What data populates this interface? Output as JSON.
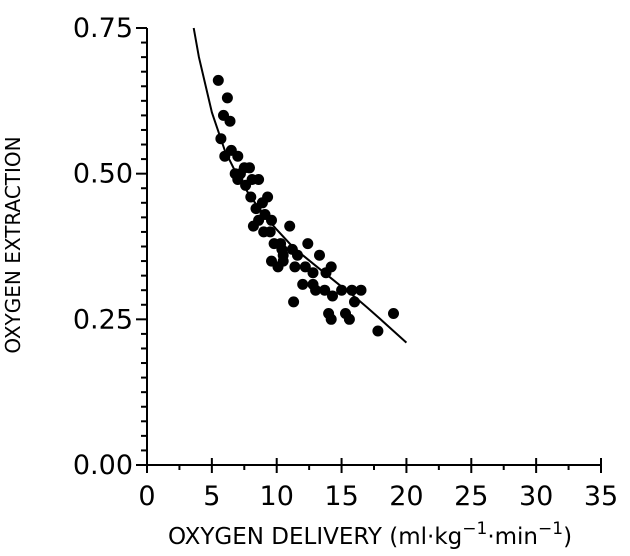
{
  "chart_data": {
    "type": "scatter",
    "title": "",
    "xlabel": "OXYGEN DELIVERY (ml·kg",
    "xlabel_unit_tail": "·min",
    "xlabel_exp1": "−1",
    "xlabel_exp2": "−1",
    "xlabel_close": ")",
    "ylabel": "OXYGEN EXTRACTION",
    "xlim": [
      0,
      35
    ],
    "ylim": [
      0,
      0.75
    ],
    "x_ticks": [
      0,
      5,
      10,
      15,
      20,
      25,
      30,
      35
    ],
    "y_ticks": [
      0.0,
      0.25,
      0.5,
      0.75
    ],
    "x_tick_labels": [
      "0",
      "5",
      "10",
      "15",
      "20",
      "25",
      "30",
      "35"
    ],
    "y_tick_labels": [
      "0.00",
      "0.25",
      "0.50",
      "0.75"
    ],
    "grid": false,
    "series": [
      {
        "marker": "filled-circle",
        "color": "#000000",
        "points": [
          [
            5.5,
            0.66
          ],
          [
            5.9,
            0.6
          ],
          [
            6.2,
            0.63
          ],
          [
            6.4,
            0.59
          ],
          [
            5.7,
            0.56
          ],
          [
            6.0,
            0.53
          ],
          [
            6.5,
            0.54
          ],
          [
            7.0,
            0.53
          ],
          [
            6.8,
            0.5
          ],
          [
            7.2,
            0.5
          ],
          [
            7.5,
            0.51
          ],
          [
            7.9,
            0.51
          ],
          [
            7.0,
            0.49
          ],
          [
            7.6,
            0.48
          ],
          [
            8.1,
            0.49
          ],
          [
            8.6,
            0.49
          ],
          [
            8.0,
            0.46
          ],
          [
            8.4,
            0.44
          ],
          [
            8.9,
            0.45
          ],
          [
            9.3,
            0.46
          ],
          [
            9.1,
            0.43
          ],
          [
            9.6,
            0.42
          ],
          [
            8.2,
            0.41
          ],
          [
            9.0,
            0.4
          ],
          [
            9.5,
            0.4
          ],
          [
            9.8,
            0.38
          ],
          [
            10.3,
            0.38
          ],
          [
            11.0,
            0.41
          ],
          [
            10.5,
            0.36
          ],
          [
            11.2,
            0.37
          ],
          [
            11.6,
            0.36
          ],
          [
            9.6,
            0.35
          ],
          [
            10.5,
            0.35
          ],
          [
            11.4,
            0.34
          ],
          [
            12.2,
            0.34
          ],
          [
            12.4,
            0.38
          ],
          [
            13.3,
            0.36
          ],
          [
            13.8,
            0.33
          ],
          [
            14.2,
            0.34
          ],
          [
            12.0,
            0.31
          ],
          [
            12.8,
            0.31
          ],
          [
            13.0,
            0.3
          ],
          [
            13.7,
            0.3
          ],
          [
            14.3,
            0.29
          ],
          [
            15.0,
            0.3
          ],
          [
            15.8,
            0.3
          ],
          [
            16.5,
            0.3
          ],
          [
            11.3,
            0.28
          ],
          [
            14.0,
            0.26
          ],
          [
            14.2,
            0.25
          ],
          [
            15.3,
            0.26
          ],
          [
            16.0,
            0.28
          ],
          [
            15.6,
            0.25
          ],
          [
            17.8,
            0.23
          ],
          [
            19.0,
            0.26
          ],
          [
            10.4,
            0.37
          ],
          [
            12.8,
            0.33
          ],
          [
            8.6,
            0.42
          ],
          [
            10.1,
            0.34
          ]
        ]
      },
      {
        "type": "line",
        "marker": "none",
        "color": "#000000",
        "x": [
          3.6,
          4.0,
          5.0,
          6.0,
          7.0,
          8.0,
          9.0,
          10.0,
          11.0,
          12.0,
          13.0,
          14.0,
          15.0,
          16.0,
          17.0,
          18.0,
          19.0,
          20.0
        ],
        "y": [
          0.75,
          0.7,
          0.605,
          0.54,
          0.495,
          0.46,
          0.43,
          0.404,
          0.38,
          0.36,
          0.342,
          0.324,
          0.306,
          0.289,
          0.27,
          0.25,
          0.23,
          0.21
        ]
      }
    ]
  }
}
